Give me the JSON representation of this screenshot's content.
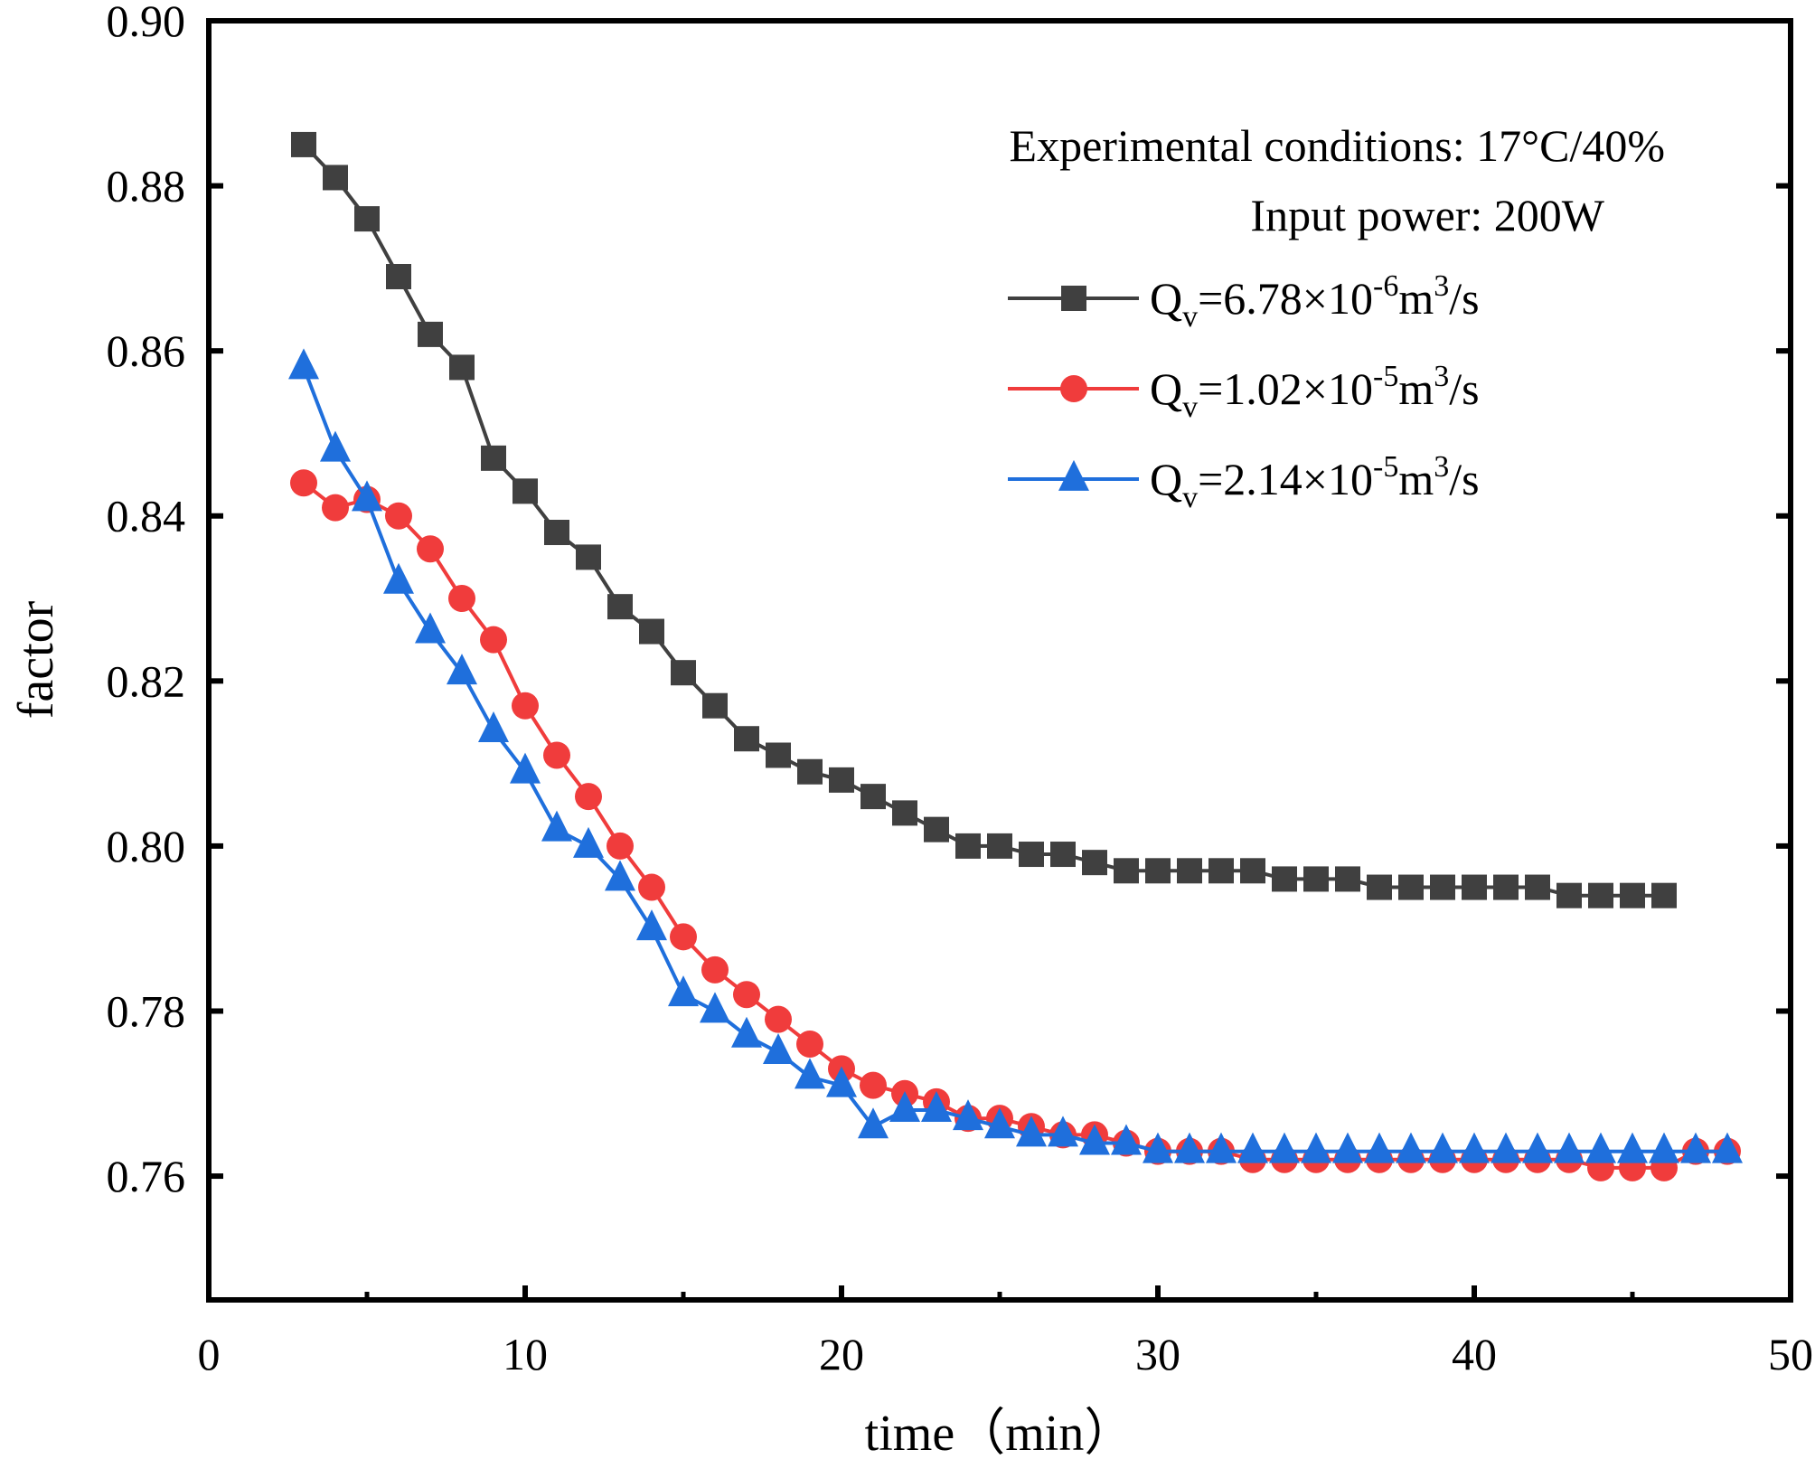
{
  "chart_data": {
    "type": "line",
    "title": "",
    "xlabel": "time（min）",
    "ylabel": "factor",
    "xlim": [
      0,
      50
    ],
    "ylim": [
      0.745,
      0.9
    ],
    "xticks": [
      0,
      10,
      20,
      30,
      40,
      50
    ],
    "xtick_labels": [
      "0",
      "10",
      "20",
      "30",
      "40",
      "50"
    ],
    "yticks": [
      0.76,
      0.78,
      0.8,
      0.82,
      0.84,
      0.86,
      0.88,
      0.9
    ],
    "ytick_labels": [
      "0.76",
      "0.78",
      "0.80",
      "0.82",
      "0.84",
      "0.86",
      "0.88",
      "0.90"
    ],
    "grid": false,
    "legend_position": "top-right",
    "annotations": [
      "Experimental conditions: 17°C/40%",
      "Input power: 200W"
    ],
    "series": [
      {
        "name": "Qv=6.78×10-6m3/s",
        "legend": {
          "base": "Q",
          "sub": "v",
          "mid": "=6.78×10",
          "sup1": "-6",
          "unit": "m",
          "sup2": "3",
          "end": "/s"
        },
        "color": "#404040",
        "marker": "square",
        "x": [
          3,
          4,
          5,
          6,
          7,
          8,
          9,
          10,
          11,
          12,
          13,
          14,
          15,
          16,
          17,
          18,
          19,
          20,
          21,
          22,
          23,
          24,
          25,
          26,
          27,
          28,
          29,
          30,
          31,
          32,
          33,
          34,
          35,
          36,
          37,
          38,
          39,
          40,
          41,
          42,
          43,
          44,
          45,
          46
        ],
        "values": [
          0.885,
          0.881,
          0.876,
          0.869,
          0.862,
          0.858,
          0.847,
          0.843,
          0.838,
          0.835,
          0.829,
          0.826,
          0.821,
          0.817,
          0.813,
          0.811,
          0.809,
          0.808,
          0.806,
          0.804,
          0.802,
          0.8,
          0.8,
          0.799,
          0.799,
          0.798,
          0.797,
          0.797,
          0.797,
          0.797,
          0.797,
          0.796,
          0.796,
          0.796,
          0.795,
          0.795,
          0.795,
          0.795,
          0.795,
          0.795,
          0.794,
          0.794,
          0.794,
          0.794
        ]
      },
      {
        "name": "Qv=1.02×10-5m3/s",
        "legend": {
          "base": "Q",
          "sub": "v",
          "mid": "=1.02×10",
          "sup1": "-5",
          "unit": "m",
          "sup2": "3",
          "end": "/s"
        },
        "color": "#f03c3c",
        "marker": "circle",
        "x": [
          3,
          4,
          5,
          6,
          7,
          8,
          9,
          10,
          11,
          12,
          13,
          14,
          15,
          16,
          17,
          18,
          19,
          20,
          21,
          22,
          23,
          24,
          25,
          26,
          27,
          28,
          29,
          30,
          31,
          32,
          33,
          34,
          35,
          36,
          37,
          38,
          39,
          40,
          41,
          42,
          43,
          44,
          45,
          46,
          47,
          48
        ],
        "values": [
          0.844,
          0.841,
          0.842,
          0.84,
          0.836,
          0.83,
          0.825,
          0.817,
          0.811,
          0.806,
          0.8,
          0.795,
          0.789,
          0.785,
          0.782,
          0.779,
          0.776,
          0.773,
          0.771,
          0.77,
          0.769,
          0.767,
          0.767,
          0.766,
          0.765,
          0.765,
          0.764,
          0.763,
          0.763,
          0.763,
          0.762,
          0.762,
          0.762,
          0.762,
          0.762,
          0.762,
          0.762,
          0.762,
          0.762,
          0.762,
          0.762,
          0.761,
          0.761,
          0.761,
          0.763,
          0.763
        ]
      },
      {
        "name": "Qv=2.14×10-5m3/s",
        "legend": {
          "base": "Q",
          "sub": "v",
          "mid": "=2.14×10",
          "sup1": "-5",
          "unit": "m",
          "sup2": "3",
          "end": "/s"
        },
        "color": "#1f6fdc",
        "marker": "triangle",
        "x": [
          3,
          4,
          5,
          6,
          7,
          8,
          9,
          10,
          11,
          12,
          13,
          14,
          15,
          16,
          17,
          18,
          19,
          20,
          21,
          22,
          23,
          24,
          25,
          26,
          27,
          28,
          29,
          30,
          31,
          32,
          33,
          34,
          35,
          36,
          37,
          38,
          39,
          40,
          41,
          42,
          43,
          44,
          45,
          46,
          47,
          48
        ],
        "values": [
          0.858,
          0.848,
          0.842,
          0.832,
          0.826,
          0.821,
          0.814,
          0.809,
          0.802,
          0.8,
          0.796,
          0.79,
          0.782,
          0.78,
          0.777,
          0.775,
          0.772,
          0.771,
          0.766,
          0.768,
          0.768,
          0.767,
          0.766,
          0.765,
          0.765,
          0.764,
          0.764,
          0.763,
          0.763,
          0.763,
          0.763,
          0.763,
          0.763,
          0.763,
          0.763,
          0.763,
          0.763,
          0.763,
          0.763,
          0.763,
          0.763,
          0.763,
          0.763,
          0.763,
          0.763,
          0.763
        ]
      }
    ]
  }
}
